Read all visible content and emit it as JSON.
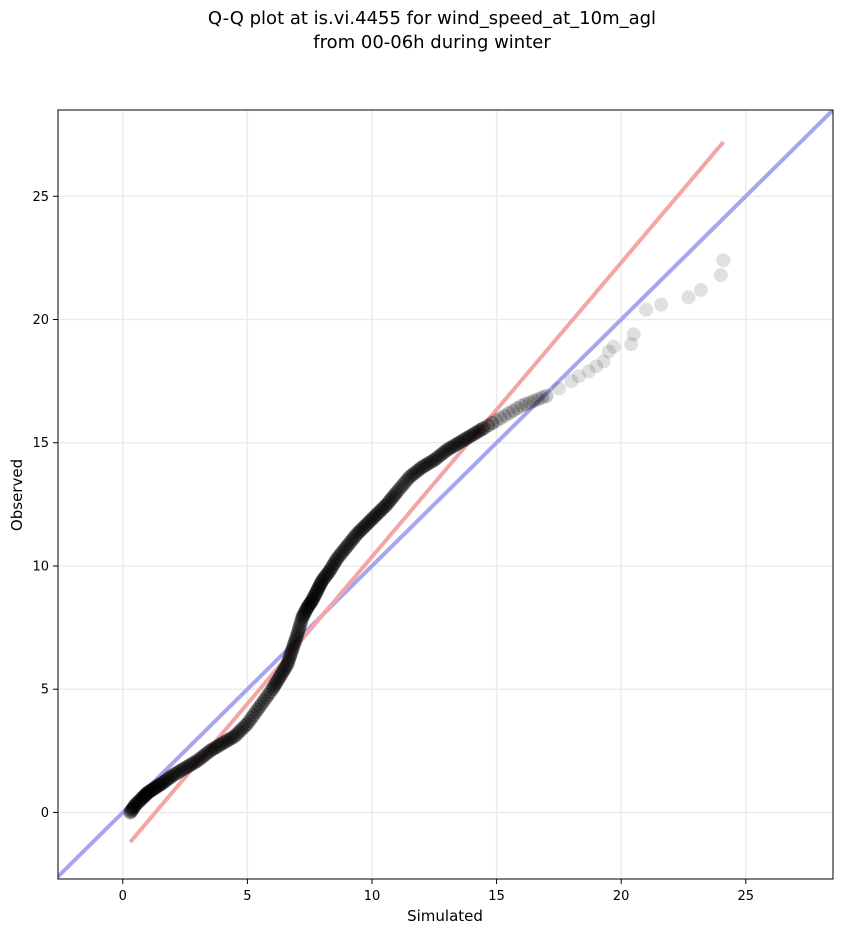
{
  "chart_data": {
    "type": "scatter",
    "title_lines": [
      "Q-Q plot at is.vi.4455 for wind_speed_at_10m_agl",
      "from 00-06h during winter"
    ],
    "xlabel": "Simulated",
    "ylabel": "Observed",
    "xlim": [
      -2.6,
      28.5
    ],
    "ylim": [
      -2.7,
      28.5
    ],
    "xticks": [
      0,
      5,
      10,
      15,
      20,
      25
    ],
    "yticks": [
      0,
      5,
      10,
      15,
      20,
      25
    ],
    "grid": true,
    "colors": {
      "points": "#000000",
      "identity_line": "#a6a6ee",
      "fit_line": "#f4a6a6",
      "grid": "#ebebeb"
    },
    "identity_line": {
      "x": [
        -2.6,
        28.5
      ],
      "y": [
        -2.6,
        28.5
      ]
    },
    "fit_line": {
      "x": [
        0.3,
        24.1
      ],
      "y": [
        -1.2,
        27.2
      ]
    },
    "quantiles": {
      "x": [
        0.3,
        0.5,
        0.8,
        1.0,
        1.3,
        1.6,
        2.0,
        2.5,
        3.0,
        3.5,
        4.0,
        4.5,
        5.0,
        5.5,
        6.0,
        6.3,
        6.6,
        6.8,
        7.0,
        7.2,
        7.4,
        7.6,
        7.8,
        8.0,
        8.3,
        8.6,
        9.0,
        9.4,
        9.8,
        10.2,
        10.6,
        11.0,
        11.5,
        12.0,
        12.5,
        13.0,
        13.5,
        14.0,
        14.5,
        15.0,
        15.5,
        16.0,
        16.5,
        17.0,
        17.5,
        18.0,
        18.3,
        18.7,
        19.0,
        19.3,
        19.5,
        19.7,
        20.4,
        20.5,
        21.0,
        21.6,
        22.7,
        23.2,
        24.0,
        24.1
      ],
      "y": [
        0.0,
        0.3,
        0.6,
        0.8,
        1.0,
        1.2,
        1.5,
        1.8,
        2.1,
        2.5,
        2.8,
        3.1,
        3.6,
        4.3,
        5.0,
        5.5,
        6.0,
        6.6,
        7.2,
        7.9,
        8.3,
        8.6,
        9.0,
        9.4,
        9.8,
        10.3,
        10.8,
        11.3,
        11.7,
        12.1,
        12.5,
        13.0,
        13.6,
        14.0,
        14.3,
        14.7,
        15.0,
        15.3,
        15.6,
        15.9,
        16.2,
        16.5,
        16.7,
        16.9,
        17.2,
        17.5,
        17.7,
        17.9,
        18.1,
        18.3,
        18.7,
        18.9,
        19.0,
        19.4,
        20.4,
        20.6,
        20.9,
        21.2,
        21.8,
        22.4
      ]
    }
  }
}
